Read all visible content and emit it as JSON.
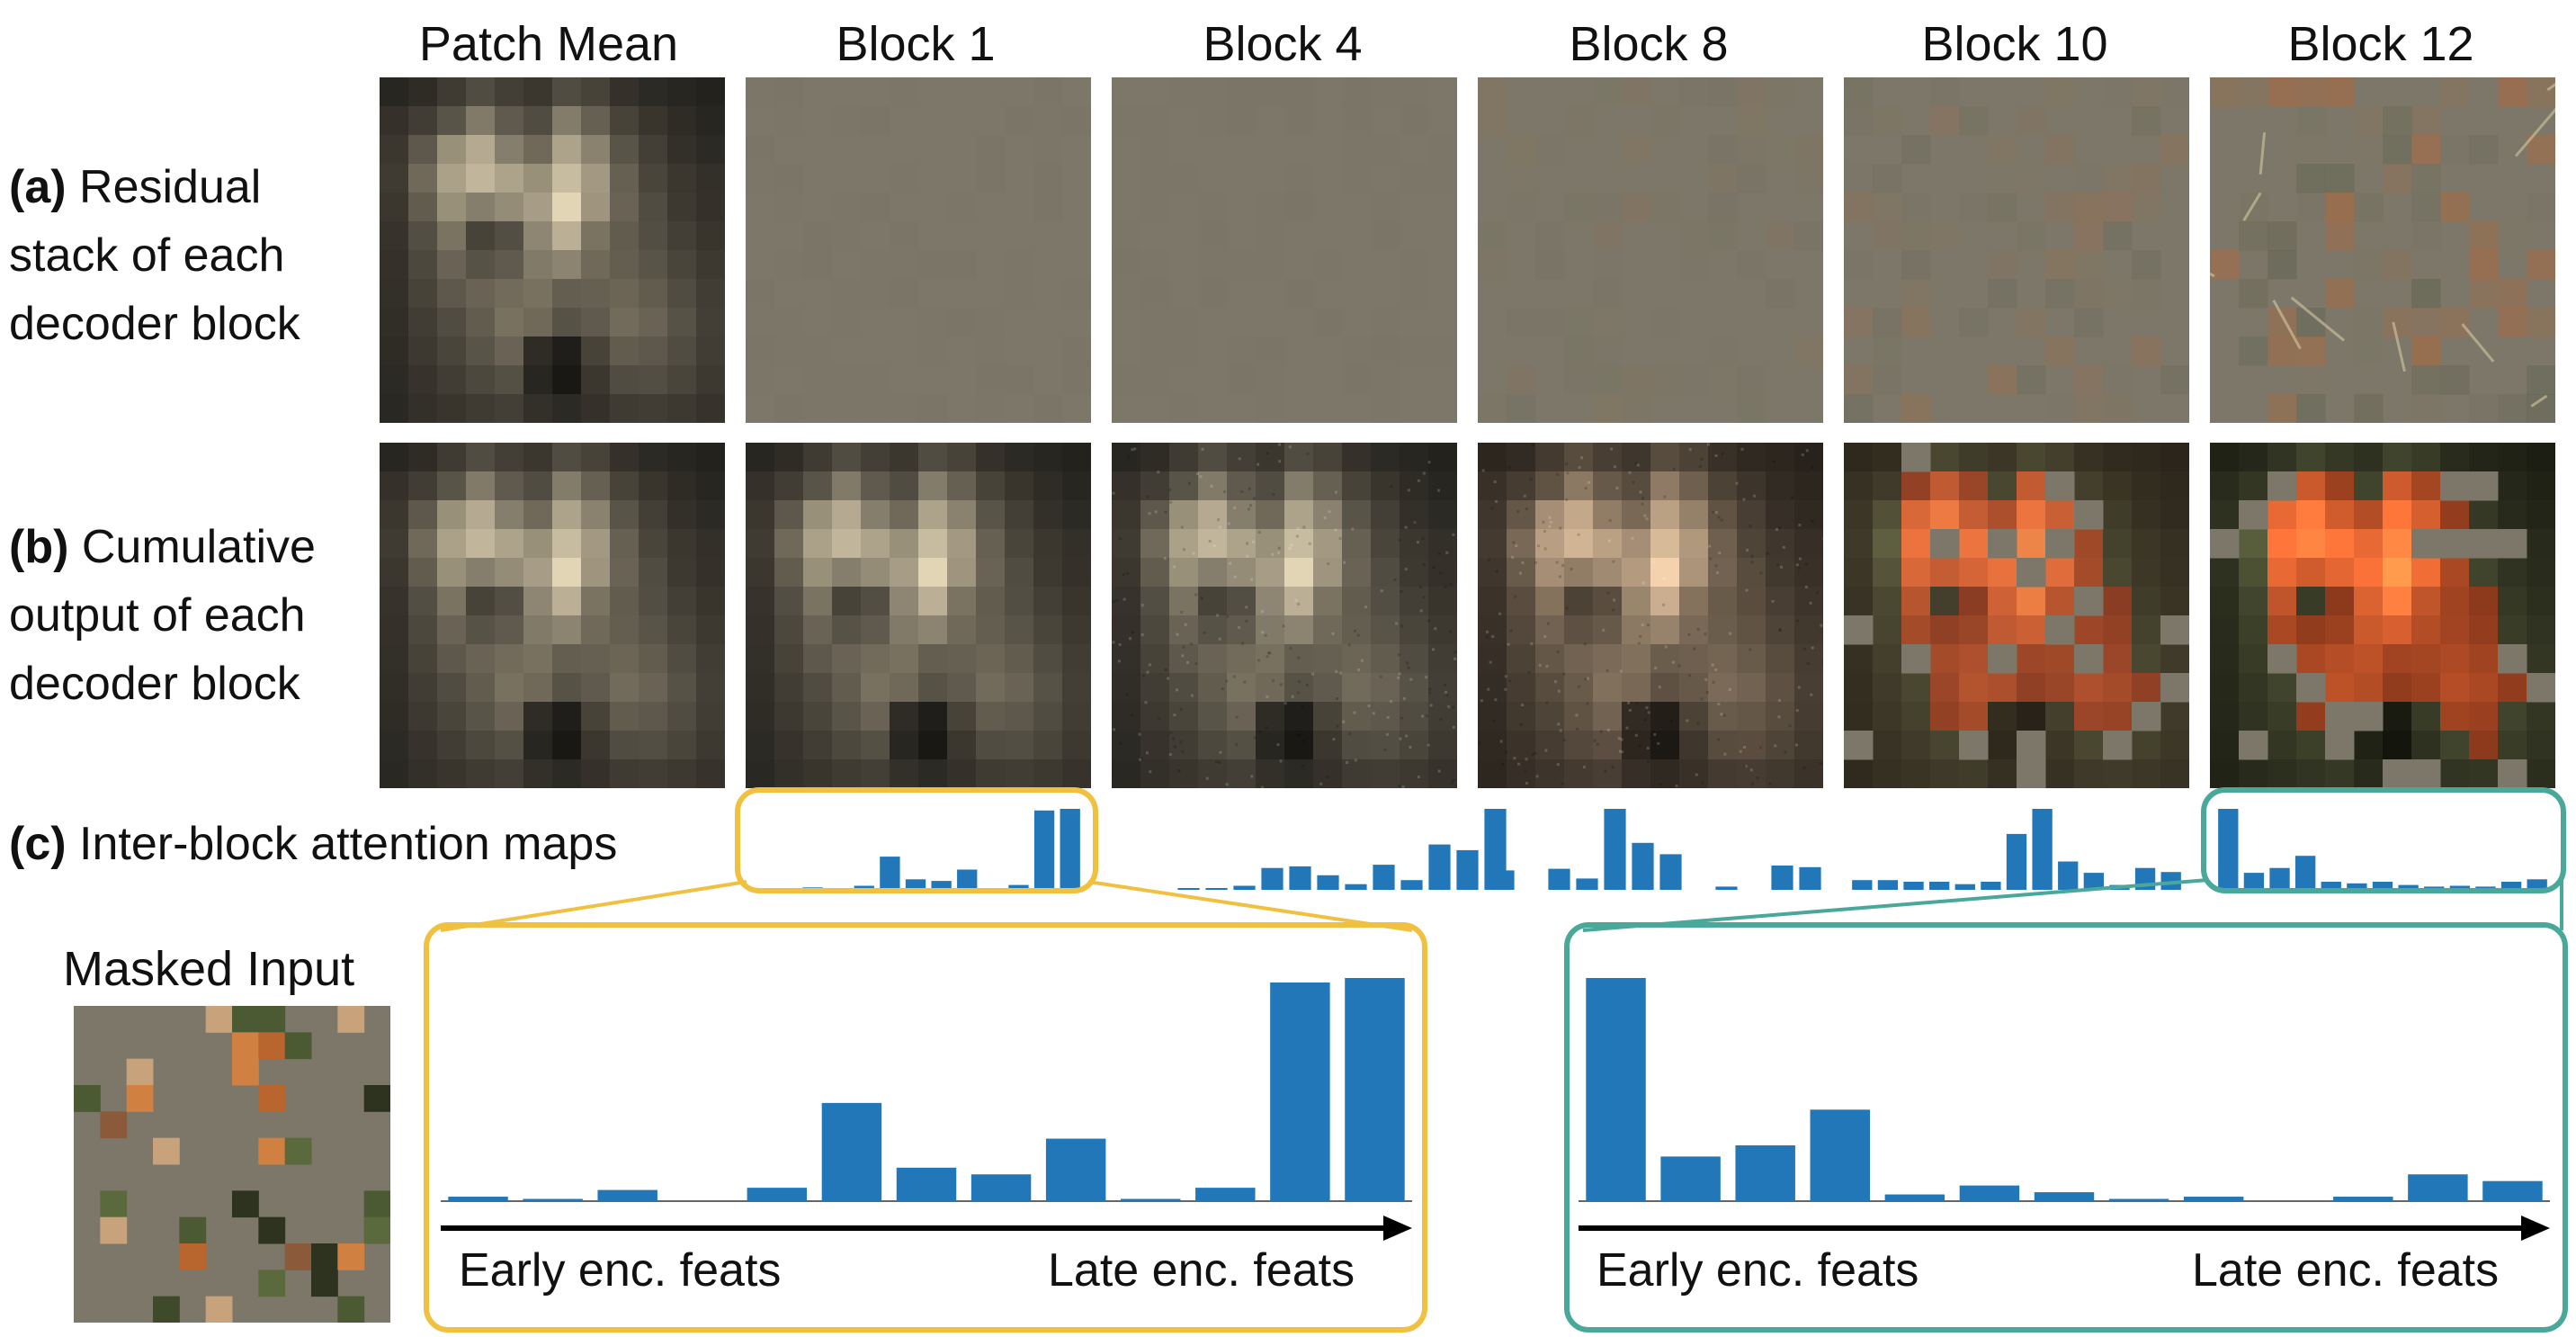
{
  "columns": [
    "Patch Mean",
    "Block 1",
    "Block 4",
    "Block 8",
    "Block 10",
    "Block 12"
  ],
  "rows": {
    "a": {
      "tag": "(a)",
      "lines": [
        "Residual",
        "stack of each",
        "decoder block"
      ]
    },
    "b": {
      "tag": "(b)",
      "lines": [
        "Cumulative",
        "output of each",
        "decoder block"
      ]
    },
    "c": {
      "tag": "(c)",
      "text": "Inter-block attention maps"
    }
  },
  "masked_input": {
    "title": "Masked Input"
  },
  "zoom_left": {
    "early_label": "Early enc. feats",
    "late_label": "Late enc. feats",
    "color": "#F0C040"
  },
  "zoom_right": {
    "early_label": "Early enc. feats",
    "late_label": "Late enc. feats",
    "color": "#4AA89A"
  },
  "colors": {
    "bar": "#2277B8",
    "axis": "#000000"
  },
  "chart_data": [
    {
      "type": "bar",
      "name": "Block 1",
      "values": [
        0.02,
        0.01,
        0.03,
        0.0,
        0.05,
        0.41,
        0.13,
        0.11,
        0.25,
        0.01,
        0.06,
        0.98,
        1.0
      ],
      "ylim": [
        0,
        1
      ]
    },
    {
      "type": "bar",
      "name": "Block 4",
      "values": [
        0.02,
        0.01,
        0.05,
        0.27,
        0.29,
        0.18,
        0.07,
        0.31,
        0.12,
        0.56,
        0.49,
        1.0
      ],
      "ylim": [
        0,
        1
      ]
    },
    {
      "type": "bar",
      "name": "Block 8",
      "values": [
        0.24,
        0.0,
        0.26,
        0.14,
        1.0,
        0.58,
        0.44,
        0.0,
        0.04,
        0.0,
        0.3,
        0.28
      ],
      "ylim": [
        0,
        1
      ]
    },
    {
      "type": "bar",
      "name": "Block 10",
      "values": [
        0.12,
        0.12,
        0.1,
        0.1,
        0.07,
        0.1,
        0.69,
        1.0,
        0.35,
        0.21,
        0.06,
        0.27,
        0.22
      ],
      "ylim": [
        0,
        1
      ]
    },
    {
      "type": "bar",
      "name": "Block 12",
      "values": [
        1.0,
        0.21,
        0.27,
        0.42,
        0.1,
        0.08,
        0.1,
        0.06,
        0.04,
        0.05,
        0.04,
        0.1,
        0.13
      ],
      "ylim": [
        0,
        1
      ]
    },
    {
      "type": "bar",
      "name": "Block 1 (zoom)",
      "values": [
        0.02,
        0.01,
        0.05,
        0.0,
        0.06,
        0.44,
        0.15,
        0.12,
        0.28,
        0.01,
        0.06,
        0.98,
        1.0
      ],
      "ylim": [
        0,
        1
      ],
      "xlabel_left": "Early enc. feats",
      "xlabel_right": "Late enc. feats"
    },
    {
      "type": "bar",
      "name": "Block 12 (zoom)",
      "values": [
        1.0,
        0.2,
        0.25,
        0.41,
        0.03,
        0.07,
        0.04,
        0.01,
        0.02,
        0.0,
        0.02,
        0.12,
        0.09
      ],
      "ylim": [
        0,
        1
      ],
      "xlabel_left": "Early enc. feats",
      "xlabel_right": "Late enc. feats"
    }
  ]
}
